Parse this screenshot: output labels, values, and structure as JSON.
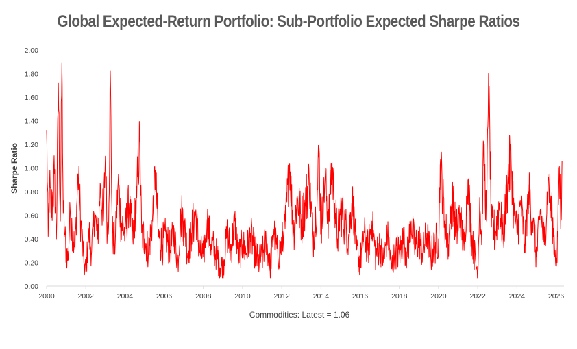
{
  "chart_data": {
    "type": "line",
    "title": "Global Expected-Return Portfolio: Sub-Portfolio Expected Sharpe Ratios",
    "xlabel": "",
    "ylabel": "Sharpe Ratio",
    "xlim": [
      2000.0,
      2026.4
    ],
    "ylim": [
      0.0,
      2.0
    ],
    "y_ticks": [
      "0.00",
      "0.20",
      "0.40",
      "0.60",
      "0.80",
      "1.00",
      "1.20",
      "1.40",
      "1.60",
      "1.80",
      "2.00"
    ],
    "x_ticks": [
      "2000",
      "2002",
      "2004",
      "2006",
      "2008",
      "2010",
      "2012",
      "2014",
      "2016",
      "2018",
      "2020",
      "2022",
      "2024",
      "2026"
    ],
    "grid": false,
    "legend_position": "bottom",
    "series": [
      {
        "name": "Commodities: Latest = 1.06",
        "color": "#ff0000",
        "latest": 1.06,
        "x": [
          2000.0,
          2000.08,
          2000.15,
          2000.22,
          2000.3,
          2000.4,
          2000.5,
          2000.6,
          2000.7,
          2000.78,
          2000.85,
          2000.92,
          2001.0,
          2001.1,
          2001.2,
          2001.3,
          2001.45,
          2001.6,
          2001.75,
          2001.9,
          2002.0,
          2002.15,
          2002.3,
          2002.45,
          2002.6,
          2002.75,
          2002.9,
          2003.0,
          2003.1,
          2003.18,
          2003.25,
          2003.35,
          2003.5,
          2003.65,
          2003.8,
          2004.0,
          2004.2,
          2004.4,
          2004.6,
          2004.75,
          2004.85,
          2005.0,
          2005.2,
          2005.4,
          2005.55,
          2005.7,
          2005.9,
          2006.1,
          2006.3,
          2006.5,
          2006.7,
          2006.85,
          2007.0,
          2007.2,
          2007.4,
          2007.6,
          2007.8,
          2008.0,
          2008.2,
          2008.4,
          2008.6,
          2008.8,
          2009.0,
          2009.2,
          2009.4,
          2009.6,
          2009.8,
          2010.0,
          2010.2,
          2010.4,
          2010.6,
          2010.8,
          2011.0,
          2011.2,
          2011.4,
          2011.6,
          2011.8,
          2012.0,
          2012.2,
          2012.4,
          2012.6,
          2012.8,
          2013.0,
          2013.2,
          2013.4,
          2013.6,
          2013.8,
          2013.9,
          2014.0,
          2014.2,
          2014.4,
          2014.55,
          2014.7,
          2014.85,
          2015.0,
          2015.2,
          2015.4,
          2015.6,
          2015.8,
          2016.0,
          2016.2,
          2016.4,
          2016.6,
          2016.8,
          2017.0,
          2017.2,
          2017.4,
          2017.6,
          2017.8,
          2018.0,
          2018.2,
          2018.4,
          2018.6,
          2018.8,
          2019.0,
          2019.2,
          2019.4,
          2019.6,
          2019.8,
          2020.0,
          2020.1,
          2020.3,
          2020.5,
          2020.7,
          2020.9,
          2021.1,
          2021.3,
          2021.5,
          2021.7,
          2021.9,
          2022.0,
          2022.1,
          2022.2,
          2022.3,
          2022.45,
          2022.55,
          2022.7,
          2022.9,
          2023.1,
          2023.3,
          2023.5,
          2023.7,
          2023.85,
          2024.0,
          2024.2,
          2024.4,
          2024.6,
          2024.8,
          2025.0,
          2025.2,
          2025.4,
          2025.6,
          2025.8,
          2025.95,
          2026.05,
          2026.15,
          2026.25,
          2026.3
        ],
        "values": [
          1.32,
          0.42,
          0.86,
          0.62,
          0.72,
          0.95,
          0.4,
          1.72,
          0.55,
          1.89,
          0.62,
          0.45,
          0.3,
          0.22,
          0.65,
          0.48,
          0.3,
          0.95,
          0.55,
          0.2,
          0.12,
          0.45,
          0.3,
          0.62,
          0.4,
          0.85,
          0.55,
          1.1,
          0.45,
          0.7,
          1.82,
          0.45,
          0.35,
          0.88,
          0.55,
          0.45,
          0.7,
          0.4,
          0.75,
          1.23,
          0.45,
          0.4,
          0.3,
          0.55,
          0.98,
          0.42,
          0.35,
          0.42,
          0.3,
          0.45,
          0.2,
          0.6,
          0.55,
          0.28,
          0.45,
          0.62,
          0.3,
          0.25,
          0.55,
          0.35,
          0.3,
          0.2,
          0.15,
          0.45,
          0.3,
          0.55,
          0.25,
          0.35,
          0.28,
          0.45,
          0.3,
          0.2,
          0.25,
          0.4,
          0.15,
          0.48,
          0.25,
          0.35,
          0.55,
          1.04,
          0.45,
          0.75,
          0.55,
          0.68,
          0.9,
          0.4,
          0.7,
          1.17,
          0.45,
          0.9,
          0.55,
          1.04,
          0.7,
          0.4,
          0.65,
          0.55,
          0.4,
          0.75,
          0.3,
          0.2,
          0.45,
          0.3,
          0.55,
          0.25,
          0.35,
          0.2,
          0.45,
          0.15,
          0.3,
          0.28,
          0.4,
          0.25,
          0.55,
          0.32,
          0.4,
          0.28,
          0.45,
          0.25,
          0.35,
          0.4,
          1.07,
          0.55,
          0.35,
          0.75,
          0.45,
          0.62,
          0.3,
          0.9,
          0.4,
          0.2,
          0.12,
          0.75,
          0.35,
          1.2,
          0.55,
          1.8,
          0.5,
          0.45,
          0.7,
          0.4,
          0.85,
          1.08,
          0.6,
          0.45,
          0.7,
          0.35,
          0.8,
          0.55,
          0.25,
          0.65,
          0.35,
          0.9,
          0.55,
          0.3,
          0.2,
          1.0,
          0.6,
          1.06
        ]
      }
    ]
  }
}
